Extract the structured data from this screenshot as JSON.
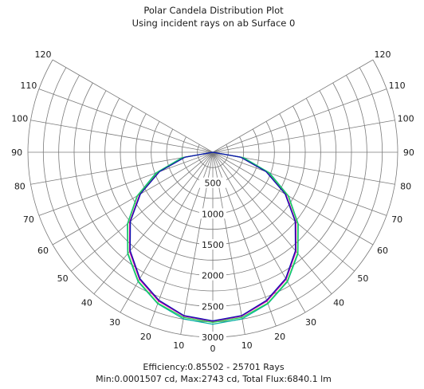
{
  "chart_data": {
    "type": "polar",
    "title": "Polar Candela Distribution Plot",
    "subtitle": "Using incident rays on ab Surface 0",
    "angular_axis": {
      "zero_direction": "down",
      "labels_left": [
        120,
        110,
        100,
        90,
        80,
        70,
        60,
        50,
        40,
        30,
        20,
        10,
        0
      ],
      "labels_right": [
        120,
        110,
        100,
        90,
        80,
        70,
        60,
        50,
        40,
        30,
        20,
        10
      ],
      "spokes_step_deg": 10,
      "range_deg": [
        -120,
        120
      ]
    },
    "radial_axis": {
      "label_ticks": [
        500,
        1000,
        1500,
        2000,
        2500,
        3000
      ],
      "rings": [
        250,
        500,
        750,
        1000,
        1250,
        1500,
        1750,
        2000,
        2250,
        2500,
        2750,
        3000
      ],
      "range": [
        0,
        3000
      ]
    },
    "series": [
      {
        "color": "#c000a8",
        "points": [
          [
            0,
            2743
          ],
          [
            10,
            2700
          ],
          [
            20,
            2570
          ],
          [
            30,
            2380
          ],
          [
            40,
            2100
          ],
          [
            50,
            1760
          ],
          [
            60,
            1370
          ],
          [
            70,
            930
          ],
          [
            80,
            470
          ],
          [
            90,
            0
          ]
        ]
      },
      {
        "color": "#00b0a0",
        "points": [
          [
            0,
            2790
          ],
          [
            10,
            2745
          ],
          [
            20,
            2615
          ],
          [
            30,
            2425
          ],
          [
            40,
            2150
          ],
          [
            50,
            1810
          ],
          [
            60,
            1420
          ],
          [
            70,
            980
          ],
          [
            80,
            510
          ],
          [
            90,
            0
          ]
        ]
      },
      {
        "color": "#28d050",
        "points": [
          [
            0,
            2760
          ],
          [
            10,
            2722
          ],
          [
            20,
            2605
          ],
          [
            30,
            2415
          ],
          [
            40,
            2140
          ],
          [
            50,
            1800
          ],
          [
            60,
            1410
          ],
          [
            70,
            960
          ],
          [
            80,
            490
          ],
          [
            90,
            0
          ]
        ]
      },
      {
        "color": "#1010b0",
        "points": [
          [
            0,
            2735
          ],
          [
            10,
            2690
          ],
          [
            20,
            2555
          ],
          [
            30,
            2365
          ],
          [
            40,
            2085
          ],
          [
            50,
            1745
          ],
          [
            60,
            1355
          ],
          [
            70,
            920
          ],
          [
            80,
            455
          ],
          [
            90,
            0
          ]
        ]
      }
    ],
    "footer_line1": "Efficiency:0.85502 - 25701 Rays",
    "footer_line2": "Min:0.0001507 cd, Max:2743 cd, Total Flux:6840.1 lm"
  }
}
